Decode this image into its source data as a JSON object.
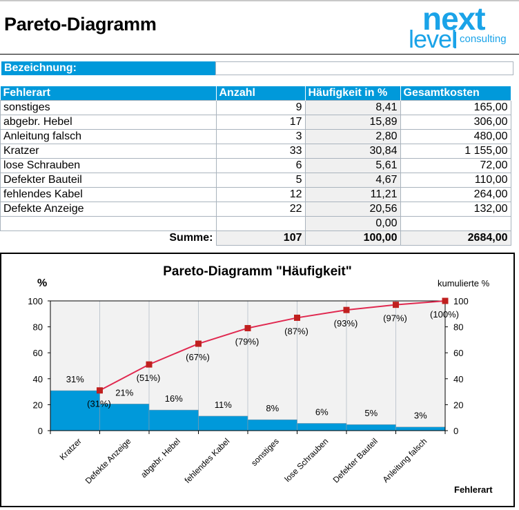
{
  "header": {
    "title": "Pareto-Diagramm",
    "logo": {
      "line1": "next",
      "line2": "level",
      "line3": "consulting",
      "color": "#1aa3e8"
    }
  },
  "bezeichnung": {
    "label": "Bezeichnung:",
    "value": ""
  },
  "table": {
    "columns": [
      "Fehlerart",
      "Anzahl",
      "Häufigkeit in %",
      "Gesamtkosten"
    ],
    "rows": [
      {
        "fehlerart": "sonstiges",
        "anzahl": "9",
        "haeufigkeit": "8,41",
        "kosten": "165,00"
      },
      {
        "fehlerart": "abgebr. Hebel",
        "anzahl": "17",
        "haeufigkeit": "15,89",
        "kosten": "306,00"
      },
      {
        "fehlerart": "Anleitung falsch",
        "anzahl": "3",
        "haeufigkeit": "2,80",
        "kosten": "480,00"
      },
      {
        "fehlerart": "Kratzer",
        "anzahl": "33",
        "haeufigkeit": "30,84",
        "kosten": "1 155,00"
      },
      {
        "fehlerart": "lose Schrauben",
        "anzahl": "6",
        "haeufigkeit": "5,61",
        "kosten": "72,00"
      },
      {
        "fehlerart": "Defekter Bauteil",
        "anzahl": "5",
        "haeufigkeit": "4,67",
        "kosten": "110,00"
      },
      {
        "fehlerart": "fehlendes Kabel",
        "anzahl": "12",
        "haeufigkeit": "11,21",
        "kosten": "264,00"
      },
      {
        "fehlerart": "Defekte Anzeige",
        "anzahl": "22",
        "haeufigkeit": "20,56",
        "kosten": "132,00"
      },
      {
        "fehlerart": "",
        "anzahl": "",
        "haeufigkeit": "0,00",
        "kosten": ""
      }
    ],
    "sum": {
      "label": "Summe:",
      "anzahl": "107",
      "haeufigkeit": "100,00",
      "kosten": "2684,00"
    }
  },
  "colors": {
    "accent": "#0099da",
    "bar": "#0099da",
    "line": "#e0284f",
    "marker": "#c0201f",
    "plot_bg": "#f2f2f2"
  },
  "chart_data": {
    "type": "bar",
    "title": "Pareto-Diagramm \"Häufigkeit\"",
    "xlabel": "Fehlerart",
    "ylabel": "%",
    "ylabel_right": "kumulierte %",
    "ylim": [
      0,
      100
    ],
    "yticks": [
      0,
      20,
      40,
      60,
      80,
      100
    ],
    "grid": "vertical category separators",
    "categories": [
      "Kratzer",
      "Defekte Anzeige",
      "abgebr. Hebel",
      "fehlendes Kabel",
      "sonstiges",
      "lose Schrauben",
      "Defekter Bauteil",
      "Anleitung falsch"
    ],
    "series": [
      {
        "name": "Häufigkeit",
        "type": "bar",
        "values": [
          30.84,
          20.56,
          15.89,
          11.21,
          8.41,
          5.61,
          4.67,
          2.8
        ],
        "labels": [
          "31%",
          "21%",
          "16%",
          "11%",
          "8%",
          "6%",
          "5%",
          "3%"
        ]
      },
      {
        "name": "kumulierte %",
        "type": "line",
        "axis": "right",
        "values": [
          31,
          51,
          67,
          79,
          87,
          93,
          97,
          100
        ],
        "labels": [
          "(31%)",
          "(51%)",
          "(67%)",
          "(79%)",
          "(87%)",
          "(93%)",
          "(97%)",
          "(100%)"
        ]
      }
    ]
  }
}
